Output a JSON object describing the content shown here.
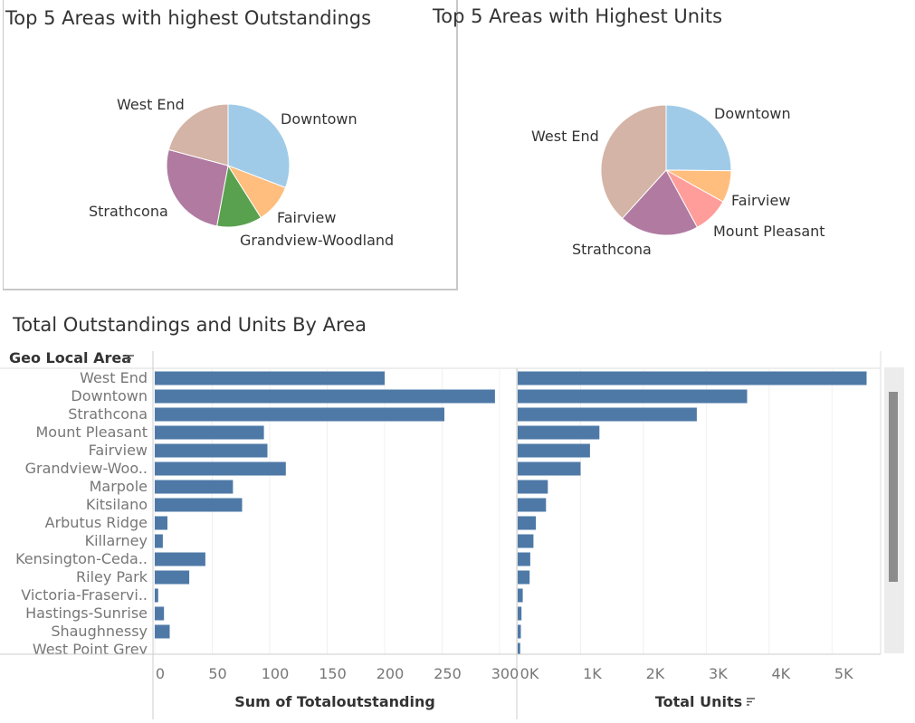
{
  "dashboard": {
    "title_pie1": "Top 5 Areas with highest Outstandings",
    "title_pie2": "Top 5  Areas with Highest Units",
    "title_bars": "Total Outstandings and Units By Area",
    "row_header": "Geo Local Area",
    "xlabel_left": "Sum of Totaloutstanding",
    "xlabel_right": "Total Units"
  },
  "chart_data": [
    {
      "type": "pie",
      "title": "Top 5 Areas with highest Outstandings",
      "labels": [
        "Downtown",
        "Fairview",
        "Grandview-Woodland",
        "Strathcona",
        "West End"
      ],
      "values": [
        296,
        98,
        114,
        252,
        200
      ],
      "colors": [
        "#a0cbe8",
        "#ffbe7d",
        "#59a14f",
        "#b07aa1",
        "#d4b4a6"
      ]
    },
    {
      "type": "pie",
      "title": "Top 5  Areas with Highest Units",
      "labels": [
        "Downtown",
        "Fairview",
        "Mount Pleasant",
        "Strathcona",
        "West End"
      ],
      "values": [
        3650,
        1150,
        1300,
        2850,
        5550
      ],
      "colors": [
        "#a0cbe8",
        "#ffbe7d",
        "#ff9d9a",
        "#b07aa1",
        "#d4b4a6"
      ]
    },
    {
      "type": "bar",
      "title": "Total Outstandings and Units By Area",
      "categories": [
        "West End",
        "Downtown",
        "Strathcona",
        "Mount Pleasant",
        "Fairview",
        "Grandview-Woo..",
        "Marpole",
        "Kitsilano",
        "Arbutus Ridge",
        "Killarney",
        "Kensington-Ceda..",
        "Riley Park",
        "Victoria-Fraservi..",
        "Hastings-Sunrise",
        "Shaughnessy",
        "West Point Grey"
      ],
      "series": [
        {
          "name": "Sum of Totaloutstanding",
          "values": [
            200,
            296,
            252,
            95,
            98,
            114,
            68,
            76,
            11,
            7,
            44,
            30,
            3,
            8,
            13,
            0
          ],
          "xlim": [
            0,
            300
          ],
          "ticks": [
            0,
            50,
            100,
            150,
            200,
            250,
            300
          ]
        },
        {
          "name": "Total Units",
          "values": [
            5550,
            3650,
            2850,
            1300,
            1150,
            1000,
            480,
            450,
            290,
            250,
            200,
            190,
            80,
            60,
            50,
            40
          ],
          "xlim": [
            0,
            5500
          ],
          "ticks": [
            "0K",
            "1K",
            "2K",
            "3K",
            "4K",
            "5K"
          ]
        }
      ],
      "bar_color": "#4e79a7"
    }
  ]
}
